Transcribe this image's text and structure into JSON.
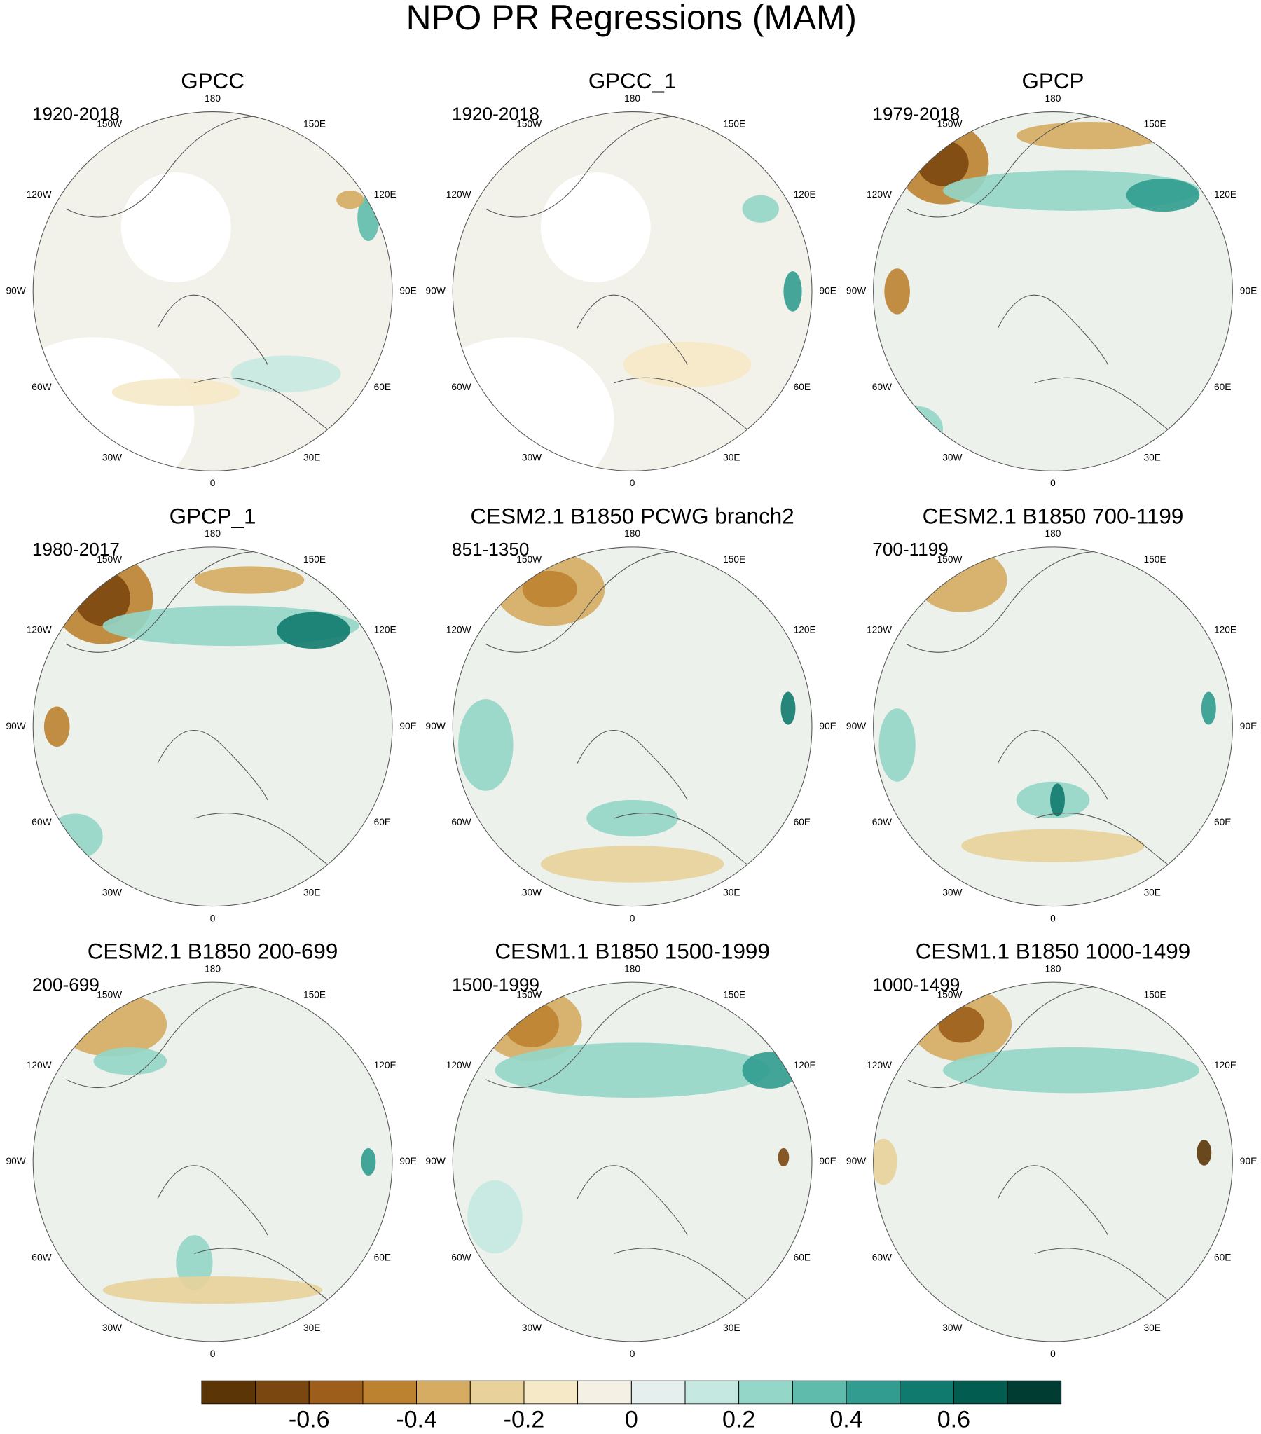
{
  "title": "NPO PR Regressions (MAM)",
  "longitude_labels": [
    "180",
    "150E",
    "120E",
    "90E",
    "60E",
    "30E",
    "0",
    "30W",
    "60W",
    "90W",
    "120W",
    "150W"
  ],
  "panels": [
    {
      "title": "GPCC",
      "period": "1920-2018"
    },
    {
      "title": "GPCC_1",
      "period": "1920-2018"
    },
    {
      "title": "GPCP",
      "period": "1979-2018"
    },
    {
      "title": "GPCP_1",
      "period": "1980-2017"
    },
    {
      "title": "CESM2.1 B1850 PCWG branch2",
      "period": "851-1350"
    },
    {
      "title": "CESM2.1 B1850 700-1199",
      "period": "700-1199"
    },
    {
      "title": "CESM2.1 B1850 200-699",
      "period": "200-699"
    },
    {
      "title": "CESM1.1 B1850 1500-1999",
      "period": "1500-1999"
    },
    {
      "title": "CESM1.1 B1850 1000-1499",
      "period": "1000-1499"
    }
  ],
  "colorbar": {
    "levels": [
      -0.7,
      -0.6,
      -0.5,
      -0.4,
      -0.3,
      -0.2,
      -0.1,
      0,
      0.1,
      0.2,
      0.3,
      0.4,
      0.5,
      0.6,
      0.7
    ],
    "colors": [
      "#5c3507",
      "#7b4710",
      "#9c5e1a",
      "#bd8230",
      "#d5ac62",
      "#e8d19a",
      "#f6e9c8",
      "#f4f0e4",
      "#e4efee",
      "#c5e9e1",
      "#94d6c8",
      "#5fbcac",
      "#319c8f",
      "#117a6e",
      "#025c4f",
      "#013c32"
    ],
    "ticks": [
      -0.6,
      -0.4,
      -0.2,
      0,
      0.2,
      0.4,
      0.6
    ]
  }
}
